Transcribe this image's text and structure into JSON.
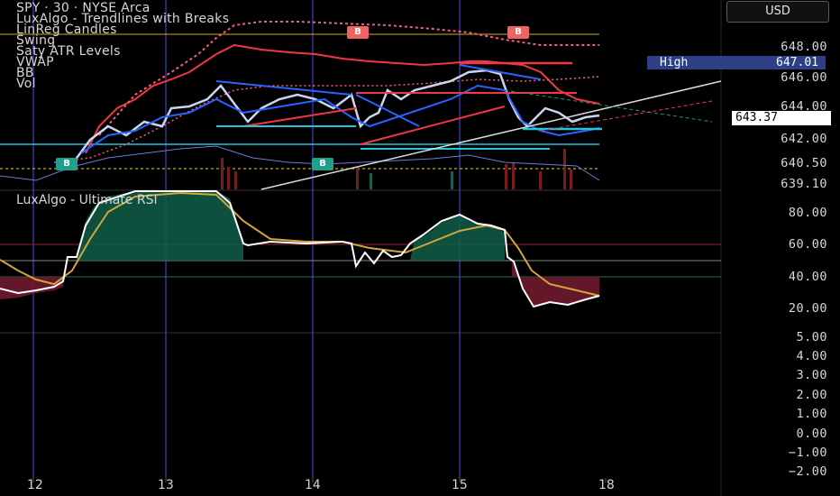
{
  "legend": {
    "symbol_line": "SPY · 30 · NYSE Arca",
    "indicators": [
      "LuxAlgo - Trendlines with Breaks",
      "LinReg Candles",
      "Swing",
      "Saty ATR Levels",
      "VWAP",
      "BB",
      "Vol"
    ]
  },
  "rsi_title": "LuxAlgo - Ultimate RSI",
  "currency_button": "USD",
  "high_marker": {
    "label": "High",
    "value": "647.01"
  },
  "last_price": "643.37",
  "price_axis": [
    "648.00",
    "646.00",
    "644.00",
    "642.00",
    "640.50",
    "639.10"
  ],
  "rsi_axis": [
    "80.00",
    "60.00",
    "40.00",
    "20.00"
  ],
  "lower_axis": [
    "5.00",
    "4.00",
    "3.00",
    "2.00",
    "1.00",
    "0.00",
    "−1.00",
    "−2.00"
  ],
  "time_axis": [
    "12",
    "13",
    "14",
    "15",
    "18"
  ],
  "signal_badges": {
    "sell": "B",
    "buy": "B"
  },
  "colors": {
    "background": "#000000",
    "bull": "#1e9e6e",
    "bear": "#f23645",
    "rsi_line": "#d4a53a",
    "trend_blue": "#2962ff",
    "cyan": "#22c6d9",
    "session_line": "#3b3fae"
  }
}
